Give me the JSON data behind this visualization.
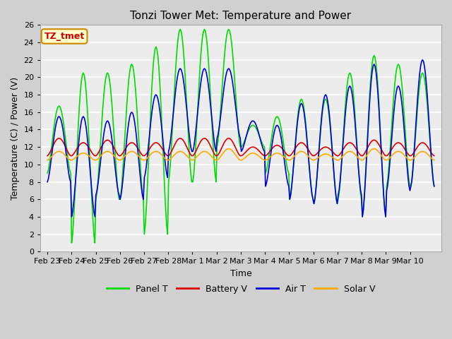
{
  "title": "Tonzi Tower Met: Temperature and Power",
  "xlabel": "Time",
  "ylabel": "Temperature (C) / Power (V)",
  "ylim": [
    0,
    26
  ],
  "yticks": [
    0,
    2,
    4,
    6,
    8,
    10,
    12,
    14,
    16,
    18,
    20,
    22,
    24,
    26
  ],
  "xtick_labels": [
    "Feb 23",
    "Feb 24",
    "Feb 25",
    "Feb 26",
    "Feb 27",
    "Feb 28",
    "Mar 1",
    "Mar 2",
    "Mar 3",
    "Mar 4",
    "Mar 5",
    "Mar 6",
    "Mar 7",
    "Mar 8",
    "Mar 9",
    "Mar 10"
  ],
  "legend_colors": [
    "#00dd00",
    "#dd0000",
    "#0000dd",
    "#ffaa00"
  ],
  "legend_labels": [
    "Panel T",
    "Battery V",
    "Air T",
    "Solar V"
  ],
  "tag_text": "TZ_tmet",
  "tag_bg": "#ffffcc",
  "tag_border": "#cc8800",
  "tag_text_color": "#cc0000"
}
